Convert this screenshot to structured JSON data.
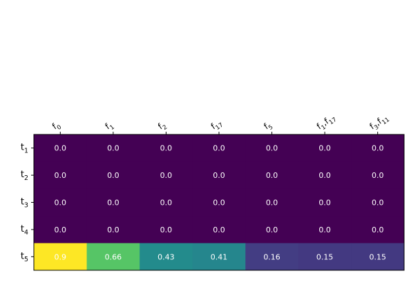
{
  "chart_data": {
    "type": "heatmap",
    "colormap": "viridis",
    "vmin": 0,
    "vmax": 0.9,
    "x_tick_position": "top",
    "columns": [
      {
        "base": "f",
        "sub": "0"
      },
      {
        "base": "f",
        "sub": "1"
      },
      {
        "base": "f",
        "sub": "2"
      },
      {
        "base": "f",
        "sub": "17"
      },
      {
        "base": "f",
        "sub": "5"
      },
      {
        "base": "f",
        "sub": "1",
        "base2": "f",
        "sub2": "17"
      },
      {
        "base": "f",
        "sub": "3",
        "base2": "f",
        "sub2": "11"
      }
    ],
    "rows": [
      {
        "base": "t",
        "sub": "1"
      },
      {
        "base": "t",
        "sub": "2"
      },
      {
        "base": "t",
        "sub": "3"
      },
      {
        "base": "t",
        "sub": "4"
      },
      {
        "base": "t",
        "sub": "5"
      }
    ],
    "values": [
      [
        0.0,
        0.0,
        0.0,
        0.0,
        0.0,
        0.0,
        0.0
      ],
      [
        0.0,
        0.0,
        0.0,
        0.0,
        0.0,
        0.0,
        0.0
      ],
      [
        0.0,
        0.0,
        0.0,
        0.0,
        0.0,
        0.0,
        0.0
      ],
      [
        0.0,
        0.0,
        0.0,
        0.0,
        0.0,
        0.0,
        0.0
      ],
      [
        0.9,
        0.66,
        0.43,
        0.41,
        0.16,
        0.15,
        0.15
      ]
    ],
    "cell_labels": [
      [
        "0.0",
        "0.0",
        "0.0",
        "0.0",
        "0.0",
        "0.0",
        "0.0"
      ],
      [
        "0.0",
        "0.0",
        "0.0",
        "0.0",
        "0.0",
        "0.0",
        "0.0"
      ],
      [
        "0.0",
        "0.0",
        "0.0",
        "0.0",
        "0.0",
        "0.0",
        "0.0"
      ],
      [
        "0.0",
        "0.0",
        "0.0",
        "0.0",
        "0.0",
        "0.0",
        "0.0"
      ],
      [
        "0.9",
        "0.66",
        "0.43",
        "0.41",
        "0.16",
        "0.15",
        "0.15"
      ]
    ],
    "label_color": "#ffffff",
    "title": "",
    "xlabel": "",
    "ylabel": ""
  }
}
